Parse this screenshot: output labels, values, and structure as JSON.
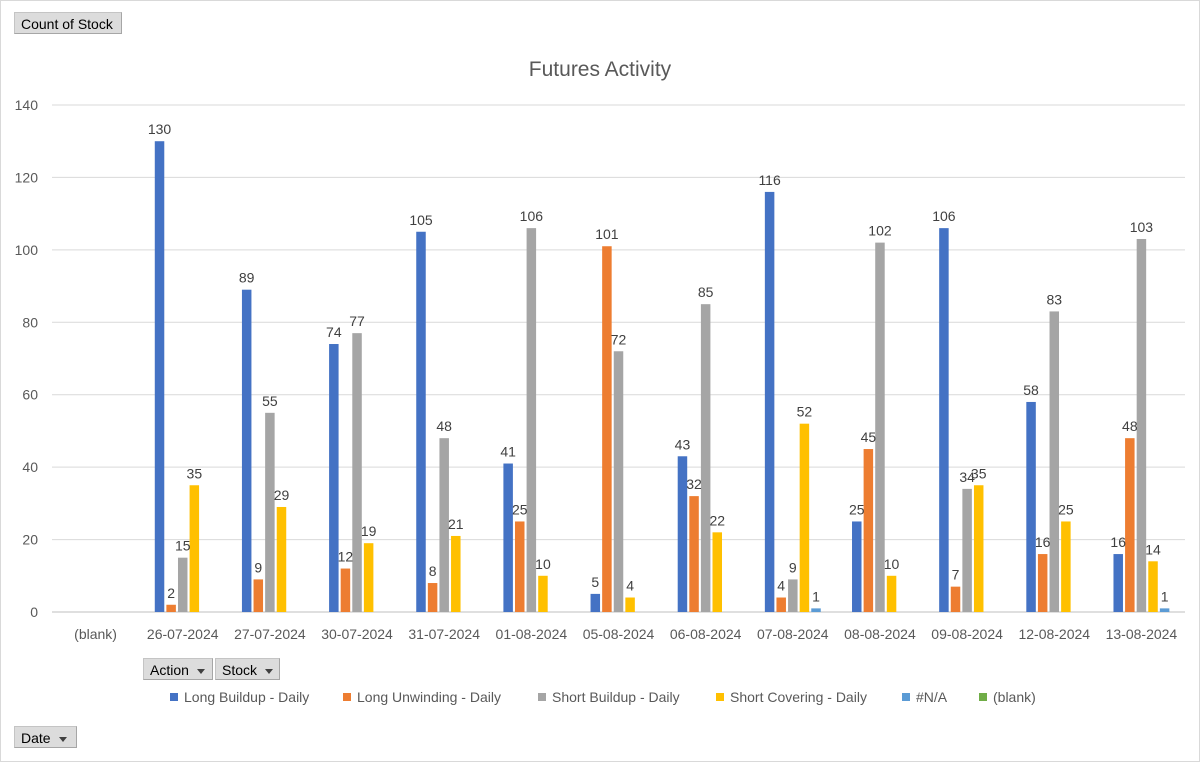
{
  "pivot": {
    "values_field": "Count of Stock",
    "series_fields": [
      "Action",
      "Stock"
    ],
    "category_field": "Date"
  },
  "chart_data": {
    "type": "bar",
    "title": "Futures Activity",
    "xlabel": "",
    "ylabel": "",
    "ylim": [
      0,
      140
    ],
    "yticks": [
      0,
      20,
      40,
      60,
      80,
      100,
      120,
      140
    ],
    "grid": true,
    "legend_position": "bottom",
    "categories": [
      "(blank)",
      "26-07-2024",
      "27-07-2024",
      "30-07-2024",
      "31-07-2024",
      "01-08-2024",
      "05-08-2024",
      "06-08-2024",
      "07-08-2024",
      "08-08-2024",
      "09-08-2024",
      "12-08-2024",
      "13-08-2024"
    ],
    "series": [
      {
        "name": "Long Buildup - Daily",
        "color": "#4472c4",
        "values": [
          null,
          130,
          89,
          74,
          105,
          41,
          5,
          43,
          116,
          25,
          106,
          58,
          16
        ]
      },
      {
        "name": "Long Unwinding - Daily",
        "color": "#ed7d31",
        "values": [
          null,
          2,
          9,
          12,
          8,
          25,
          101,
          32,
          4,
          45,
          7,
          16,
          48
        ]
      },
      {
        "name": "Short Buildup - Daily",
        "color": "#a5a5a5",
        "values": [
          null,
          15,
          55,
          77,
          48,
          106,
          72,
          85,
          9,
          102,
          34,
          83,
          103
        ]
      },
      {
        "name": "Short Covering - Daily",
        "color": "#ffc000",
        "values": [
          null,
          35,
          29,
          19,
          21,
          10,
          4,
          22,
          52,
          10,
          35,
          25,
          14
        ]
      },
      {
        "name": "#N/A",
        "color": "#5b9bd5",
        "values": [
          null,
          null,
          null,
          null,
          null,
          null,
          null,
          null,
          1,
          null,
          null,
          null,
          1
        ]
      },
      {
        "name": "(blank)",
        "color": "#70ad47",
        "values": [
          null,
          null,
          null,
          null,
          null,
          null,
          null,
          null,
          null,
          null,
          null,
          null,
          null
        ]
      }
    ]
  }
}
